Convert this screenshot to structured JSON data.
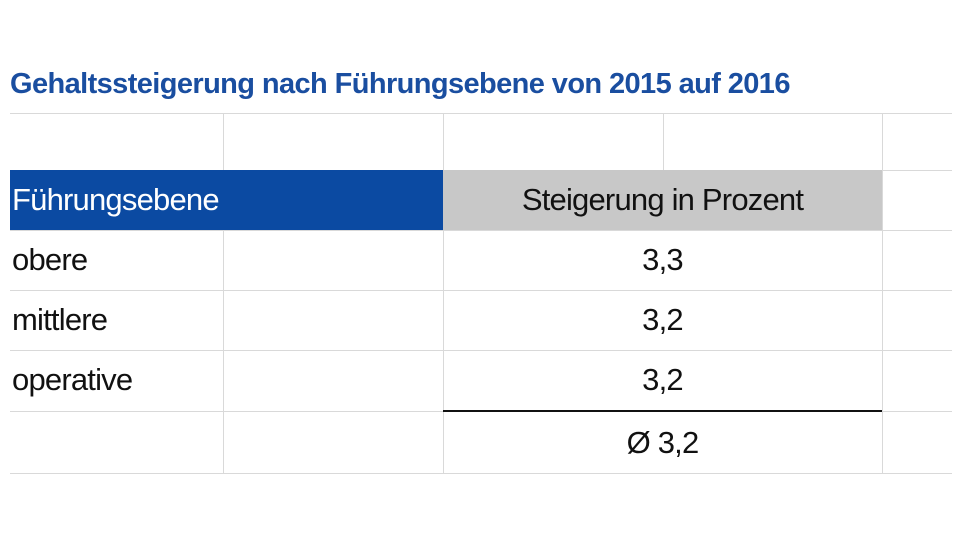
{
  "title": "Gehaltssteigerung nach Führungsebene von 2015 auf 2016",
  "table": {
    "header": [
      "Führungsebene",
      "Steigerung in Prozent"
    ],
    "rows": [
      [
        "obere",
        "3,3"
      ],
      [
        "mittlere",
        "3,2"
      ],
      [
        "operative",
        "3,2"
      ]
    ],
    "average": "Ø 3,2"
  }
}
